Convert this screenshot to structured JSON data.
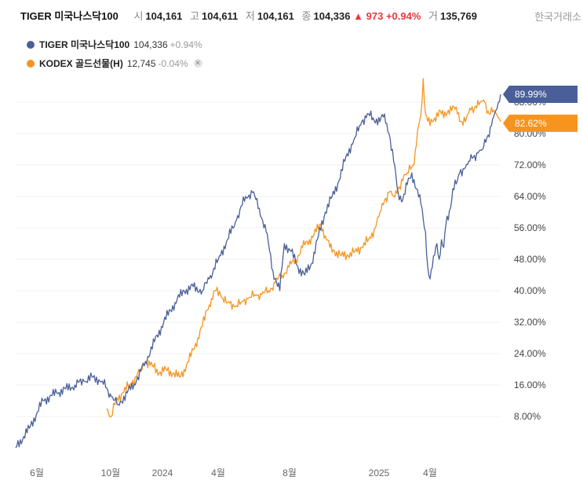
{
  "header": {
    "name": "TIGER 미국나스닥100",
    "open_label": "시",
    "open": "104,161",
    "high_label": "고",
    "high": "104,611",
    "low_label": "저",
    "low": "104,161",
    "close_label": "종",
    "close": "104,336",
    "change": "973",
    "change_pct": "+0.94%",
    "volume_label": "거",
    "volume": "135,769"
  },
  "exchange": "한국거래소",
  "legend": [
    {
      "name": "TIGER 미국나스닥100",
      "value": "104,336",
      "pct": "+0.94%",
      "color": "#4a5f9a"
    },
    {
      "name": "KODEX 골드선물(H)",
      "value": "12,745",
      "pct": "-0.04%",
      "color": "#f7941d"
    }
  ],
  "chart_data": {
    "type": "line",
    "y_unit": "%",
    "yticks": [
      "8.00%",
      "16.00%",
      "24.00%",
      "32.00%",
      "40.00%",
      "48.00%",
      "56.00%",
      "64.00%",
      "72.00%",
      "80.00%",
      "88.00%"
    ],
    "ylim": [
      -1,
      94
    ],
    "xtick_labels": [
      "6월",
      "10월",
      "2024",
      "4월",
      "8월",
      "2025",
      "4월"
    ],
    "series": [
      {
        "name": "TIGER 미국나스닥100",
        "color": "#4a5f9a",
        "last_label": "89.99%",
        "points": [
          [
            0,
            0
          ],
          [
            6,
            5
          ],
          [
            12,
            12
          ],
          [
            18,
            14
          ],
          [
            22,
            15
          ],
          [
            26,
            16
          ],
          [
            30,
            17
          ],
          [
            34,
            18
          ],
          [
            38,
            17
          ],
          [
            42,
            13
          ],
          [
            45,
            11
          ],
          [
            49,
            14
          ],
          [
            53,
            17
          ],
          [
            57,
            22
          ],
          [
            61,
            27
          ],
          [
            65,
            32
          ],
          [
            70,
            37
          ],
          [
            74,
            40
          ],
          [
            78,
            41
          ],
          [
            82,
            40
          ],
          [
            85,
            43
          ],
          [
            89,
            48
          ],
          [
            93,
            53
          ],
          [
            97,
            58
          ],
          [
            101,
            64
          ],
          [
            104,
            65
          ],
          [
            107,
            61
          ],
          [
            110,
            55
          ],
          [
            113,
            45
          ],
          [
            116,
            40
          ],
          [
            118,
            52
          ],
          [
            121,
            50
          ],
          [
            124,
            46
          ],
          [
            127,
            44
          ],
          [
            130,
            47
          ],
          [
            133,
            54
          ],
          [
            136,
            60
          ],
          [
            139,
            64
          ],
          [
            142,
            68
          ],
          [
            145,
            74
          ],
          [
            149,
            79
          ],
          [
            152,
            83
          ],
          [
            155,
            85
          ],
          [
            157,
            84
          ],
          [
            160,
            83
          ],
          [
            162,
            85
          ],
          [
            164,
            80
          ],
          [
            166,
            73
          ],
          [
            168,
            65
          ],
          [
            170,
            63
          ],
          [
            172,
            67
          ],
          [
            174,
            70
          ],
          [
            176,
            66
          ],
          [
            178,
            62
          ],
          [
            180,
            55
          ],
          [
            181,
            46
          ],
          [
            182,
            43
          ],
          [
            184,
            49
          ],
          [
            185,
            52
          ],
          [
            186,
            48
          ],
          [
            187,
            53
          ],
          [
            188,
            51
          ],
          [
            189,
            57
          ],
          [
            191,
            61
          ],
          [
            192,
            66
          ],
          [
            194,
            68
          ],
          [
            195,
            70
          ],
          [
            197,
            71
          ],
          [
            199,
            73
          ],
          [
            201,
            74
          ],
          [
            203,
            75
          ],
          [
            205,
            76
          ],
          [
            207,
            79
          ],
          [
            209,
            82
          ],
          [
            211,
            86
          ],
          [
            212,
            88
          ],
          [
            213,
            90
          ]
        ]
      },
      {
        "name": "KODEX 골드선물(H)",
        "color": "#f7941d",
        "last_label": "82.62%",
        "points": [
          [
            40,
            10
          ],
          [
            42,
            8
          ],
          [
            44,
            12
          ],
          [
            47,
            14
          ],
          [
            50,
            16
          ],
          [
            53,
            18
          ],
          [
            55,
            20
          ],
          [
            57,
            22
          ],
          [
            60,
            21
          ],
          [
            63,
            19
          ],
          [
            66,
            20
          ],
          [
            69,
            19
          ],
          [
            72,
            18
          ],
          [
            74,
            20
          ],
          [
            76,
            22
          ],
          [
            78,
            25
          ],
          [
            80,
            28
          ],
          [
            82,
            31
          ],
          [
            84,
            35
          ],
          [
            86,
            38
          ],
          [
            88,
            40
          ],
          [
            90,
            39
          ],
          [
            93,
            37
          ],
          [
            96,
            36
          ],
          [
            99,
            37
          ],
          [
            102,
            38
          ],
          [
            105,
            39
          ],
          [
            108,
            39
          ],
          [
            111,
            40
          ],
          [
            114,
            42
          ],
          [
            117,
            44
          ],
          [
            120,
            46
          ],
          [
            123,
            48
          ],
          [
            126,
            51
          ],
          [
            129,
            53
          ],
          [
            132,
            55
          ],
          [
            134,
            57
          ],
          [
            136,
            54
          ],
          [
            138,
            51
          ],
          [
            140,
            50
          ],
          [
            143,
            49
          ],
          [
            146,
            49
          ],
          [
            149,
            50
          ],
          [
            152,
            51
          ],
          [
            155,
            53
          ],
          [
            158,
            56
          ],
          [
            160,
            60
          ],
          [
            162,
            63
          ],
          [
            164,
            65
          ],
          [
            166,
            64
          ],
          [
            168,
            66
          ],
          [
            170,
            68
          ],
          [
            172,
            70
          ],
          [
            173,
            72
          ],
          [
            175,
            72
          ],
          [
            176,
            77
          ],
          [
            177,
            82
          ],
          [
            178,
            85
          ],
          [
            179,
            94
          ],
          [
            180,
            85
          ],
          [
            182,
            82
          ],
          [
            184,
            84
          ],
          [
            186,
            86
          ],
          [
            188,
            84
          ],
          [
            190,
            86
          ],
          [
            192,
            87
          ],
          [
            194,
            85
          ],
          [
            196,
            83
          ],
          [
            198,
            84
          ],
          [
            200,
            86
          ],
          [
            202,
            87
          ],
          [
            204,
            88
          ],
          [
            206,
            88
          ],
          [
            208,
            85
          ],
          [
            210,
            86
          ],
          [
            212,
            84
          ],
          [
            213,
            83
          ]
        ]
      }
    ]
  }
}
